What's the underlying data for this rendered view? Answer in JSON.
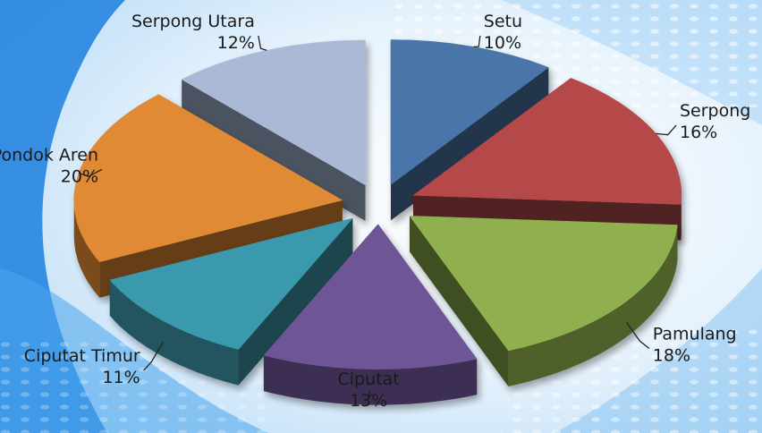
{
  "chart_data": {
    "type": "pie",
    "style": "3d-exploded",
    "title": "",
    "categories": [
      "Setu",
      "Serpong",
      "Pamulang",
      "Ciputat",
      "Ciputat Timur",
      "Pondok Aren",
      "Serpong Utara"
    ],
    "values": [
      10,
      16,
      18,
      13,
      11,
      20,
      12
    ],
    "value_labels": [
      "10%",
      "16%",
      "18%",
      "13%",
      "11%",
      "20%",
      "12%"
    ],
    "unit": "%",
    "legend": "none",
    "data_labels": "outside-with-leader-lines",
    "colors": [
      "#4a74a8",
      "#b54a48",
      "#90b050",
      "#6e5496",
      "#3b99ad",
      "#e08a35",
      "#a9b9d6"
    ],
    "background": {
      "base": "#d8ebfa",
      "accent": "#1a7fe0"
    }
  }
}
